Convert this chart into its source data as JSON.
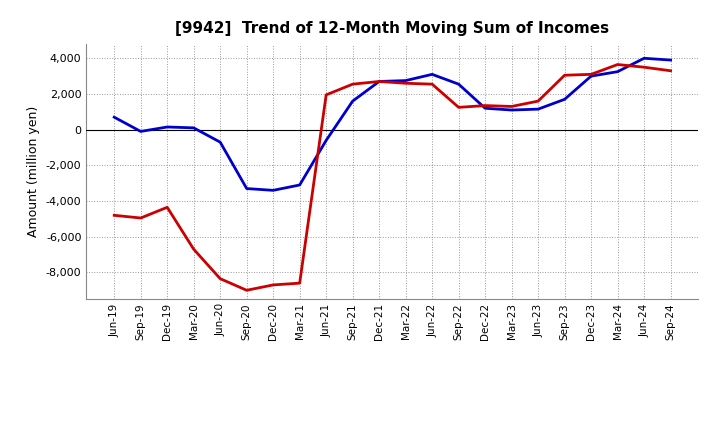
{
  "title": "[9942]  Trend of 12-Month Moving Sum of Incomes",
  "ylabel": "Amount (million yen)",
  "ylim": [
    -9500,
    4800
  ],
  "yticks": [
    -8000,
    -6000,
    -4000,
    -2000,
    0,
    2000,
    4000
  ],
  "background_color": "#ffffff",
  "grid_color": "#999999",
  "x_dates": [
    "Jun-19",
    "Sep-19",
    "Dec-19",
    "Mar-20",
    "Jun-20",
    "Sep-20",
    "Dec-20",
    "Mar-21",
    "Jun-21",
    "Sep-21",
    "Dec-21",
    "Mar-22",
    "Jun-22",
    "Sep-22",
    "Dec-22",
    "Mar-23",
    "Jun-23",
    "Sep-23",
    "Dec-23",
    "Mar-24",
    "Jun-24",
    "Sep-24"
  ],
  "ordinary_income": [
    700,
    -100,
    150,
    100,
    -700,
    -3300,
    -3400,
    -3100,
    -600,
    1600,
    2700,
    2750,
    3100,
    2550,
    1200,
    1100,
    1150,
    1700,
    3000,
    3250,
    4000,
    3900
  ],
  "net_income": [
    -4800,
    -4950,
    -4350,
    -6700,
    -8350,
    -9000,
    -8700,
    -8600,
    1950,
    2550,
    2700,
    2600,
    2550,
    1250,
    1350,
    1300,
    1600,
    3050,
    3100,
    3650,
    3500,
    3300
  ],
  "ordinary_color": "#0000cc",
  "net_income_color": "#cc0000",
  "line_width": 2.0
}
